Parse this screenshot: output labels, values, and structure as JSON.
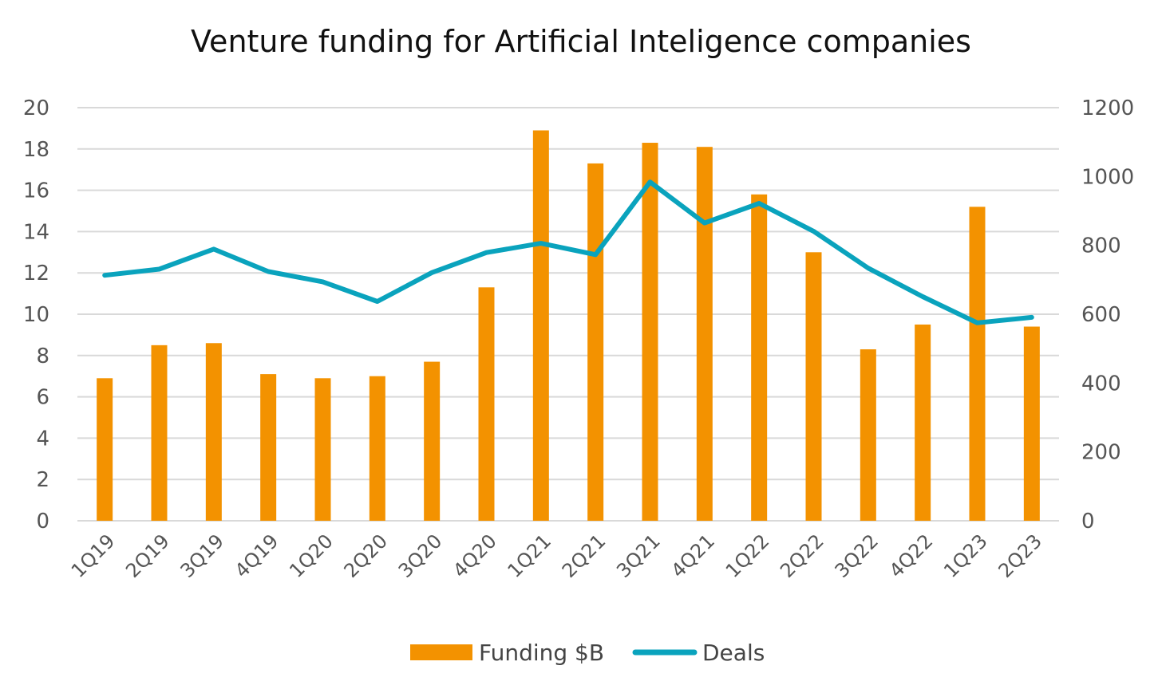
{
  "chart_data": {
    "type": "bar",
    "title": "Venture funding for Artificial Inteligence companies",
    "categories": [
      "1Q19",
      "2Q19",
      "3Q19",
      "4Q19",
      "1Q20",
      "2Q20",
      "3Q20",
      "4Q20",
      "1Q21",
      "2Q21",
      "3Q21",
      "4Q21",
      "1Q22",
      "2Q22",
      "3Q22",
      "4Q22",
      "1Q23",
      "2Q23"
    ],
    "series": [
      {
        "name": "Funding $B",
        "type": "bar",
        "axis": "left",
        "color": "#F39200",
        "values": [
          6.9,
          8.5,
          8.6,
          7.1,
          6.9,
          7.0,
          7.7,
          11.3,
          18.9,
          17.3,
          18.3,
          18.1,
          15.8,
          13.0,
          8.3,
          9.5,
          15.2,
          9.4
        ]
      },
      {
        "name": "Deals",
        "type": "line",
        "axis": "right",
        "color": "#0AA3BD",
        "values": [
          713,
          731,
          789,
          724,
          694,
          637,
          721,
          779,
          806,
          773,
          984,
          865,
          922,
          841,
          734,
          651,
          575,
          591
        ]
      }
    ],
    "y_left": {
      "ylim": [
        0,
        20
      ],
      "ticks": [
        "0",
        "2",
        "4",
        "6",
        "8",
        "10",
        "12",
        "14",
        "16",
        "18",
        "20"
      ]
    },
    "y_right": {
      "ylim": [
        0,
        1200
      ],
      "ticks": [
        "0",
        "200",
        "400",
        "600",
        "800",
        "1000",
        "1200"
      ]
    },
    "grid": true,
    "legend": "bottom"
  }
}
